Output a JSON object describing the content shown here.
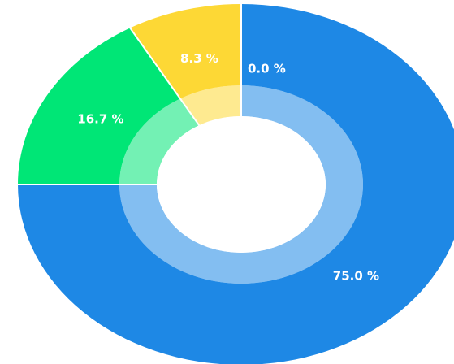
{
  "chart_data": {
    "type": "pie",
    "slices": [
      {
        "value": 75.0,
        "label": "75.0 %",
        "color": "#1E88E5"
      },
      {
        "value": 16.7,
        "label": "16.7 %",
        "color": "#00E676"
      },
      {
        "value": 8.3,
        "label": "8.3 %",
        "color": "#FDD835"
      },
      {
        "value": 0.0,
        "label": "0.0 %",
        "color": "#F44336"
      }
    ],
    "title": "",
    "legend": "none"
  }
}
